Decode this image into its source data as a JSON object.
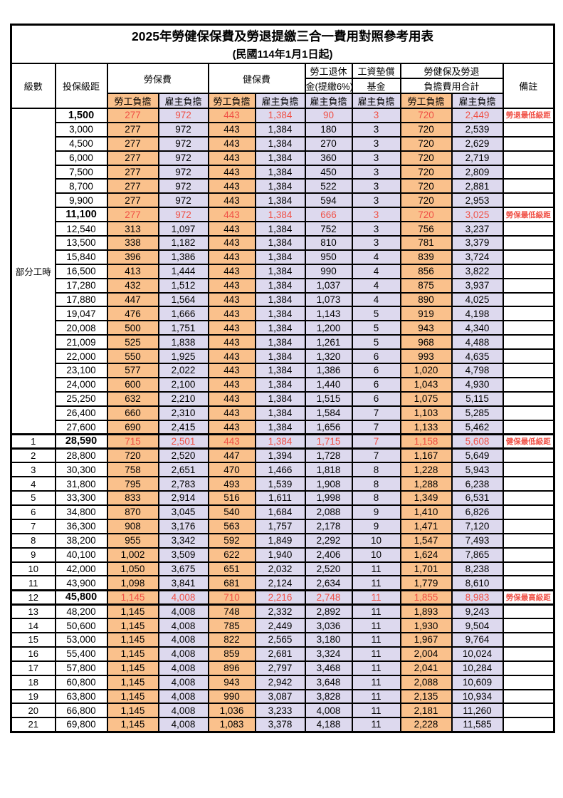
{
  "document": {
    "title": "2025年勞健保保費及勞退提繳三合一費用對照參考用表",
    "subtitle": "(民國114年1月1日起)"
  },
  "colors": {
    "employee_col_bg": "#FAC18C",
    "employer_col_bg": "#DDD9EE",
    "highlight_red": "#F05045",
    "border": "#000000",
    "page_bg": "#FFFFFF"
  },
  "header": {
    "col_level": "級數",
    "col_salary": "投保級距",
    "grp_labor": "勞保費",
    "grp_health": "健保費",
    "grp_pension_line1": "勞工退休",
    "grp_pension_line2": "金(提繳6%)",
    "grp_wage_line1": "工資墊償",
    "grp_wage_line2": "基金",
    "grp_total_line1": "勞健保及勞退",
    "grp_total_line2": "負擔費用合計",
    "sub_employee": "勞工負擔",
    "sub_employer": "雇主負擔",
    "col_remark": "備註"
  },
  "part_time_label": "部分工時",
  "rows": [
    {
      "pt": true,
      "level": "",
      "salary": "1,500",
      "v": [
        "277",
        "972",
        "443",
        "1,384",
        "90",
        "3",
        "720",
        "2,449"
      ],
      "remark": "勞退最低級距",
      "hl": true,
      "thick": false
    },
    {
      "pt": true,
      "level": "",
      "salary": "3,000",
      "v": [
        "277",
        "972",
        "443",
        "1,384",
        "180",
        "3",
        "720",
        "2,539"
      ],
      "remark": "",
      "hl": false,
      "thick": false
    },
    {
      "pt": true,
      "level": "",
      "salary": "4,500",
      "v": [
        "277",
        "972",
        "443",
        "1,384",
        "270",
        "3",
        "720",
        "2,629"
      ],
      "remark": "",
      "hl": false,
      "thick": false
    },
    {
      "pt": true,
      "level": "",
      "salary": "6,000",
      "v": [
        "277",
        "972",
        "443",
        "1,384",
        "360",
        "3",
        "720",
        "2,719"
      ],
      "remark": "",
      "hl": false,
      "thick": false
    },
    {
      "pt": true,
      "level": "",
      "salary": "7,500",
      "v": [
        "277",
        "972",
        "443",
        "1,384",
        "450",
        "3",
        "720",
        "2,809"
      ],
      "remark": "",
      "hl": false,
      "thick": false
    },
    {
      "pt": true,
      "level": "",
      "salary": "8,700",
      "v": [
        "277",
        "972",
        "443",
        "1,384",
        "522",
        "3",
        "720",
        "2,881"
      ],
      "remark": "",
      "hl": false,
      "thick": false
    },
    {
      "pt": true,
      "level": "",
      "salary": "9,900",
      "v": [
        "277",
        "972",
        "443",
        "1,384",
        "594",
        "3",
        "720",
        "2,953"
      ],
      "remark": "",
      "hl": false,
      "thick": false
    },
    {
      "pt": true,
      "level": "",
      "salary": "11,100",
      "v": [
        "277",
        "972",
        "443",
        "1,384",
        "666",
        "3",
        "720",
        "3,025"
      ],
      "remark": "勞保最低級距",
      "hl": true,
      "thick": false
    },
    {
      "pt": true,
      "level": "",
      "salary": "12,540",
      "v": [
        "313",
        "1,097",
        "443",
        "1,384",
        "752",
        "3",
        "756",
        "3,237"
      ],
      "remark": "",
      "hl": false,
      "thick": false
    },
    {
      "pt": true,
      "level": "",
      "salary": "13,500",
      "v": [
        "338",
        "1,182",
        "443",
        "1,384",
        "810",
        "3",
        "781",
        "3,379"
      ],
      "remark": "",
      "hl": false,
      "thick": false
    },
    {
      "pt": true,
      "level": "",
      "salary": "15,840",
      "v": [
        "396",
        "1,386",
        "443",
        "1,384",
        "950",
        "4",
        "839",
        "3,724"
      ],
      "remark": "",
      "hl": false,
      "thick": false
    },
    {
      "pt": true,
      "level": "",
      "salary": "16,500",
      "v": [
        "413",
        "1,444",
        "443",
        "1,384",
        "990",
        "4",
        "856",
        "3,822"
      ],
      "remark": "",
      "hl": false,
      "thick": false
    },
    {
      "pt": true,
      "level": "",
      "salary": "17,280",
      "v": [
        "432",
        "1,512",
        "443",
        "1,384",
        "1,037",
        "4",
        "875",
        "3,937"
      ],
      "remark": "",
      "hl": false,
      "thick": false
    },
    {
      "pt": true,
      "level": "",
      "salary": "17,880",
      "v": [
        "447",
        "1,564",
        "443",
        "1,384",
        "1,073",
        "4",
        "890",
        "4,025"
      ],
      "remark": "",
      "hl": false,
      "thick": false
    },
    {
      "pt": true,
      "level": "",
      "salary": "19,047",
      "v": [
        "476",
        "1,666",
        "443",
        "1,384",
        "1,143",
        "5",
        "919",
        "4,198"
      ],
      "remark": "",
      "hl": false,
      "thick": false
    },
    {
      "pt": true,
      "level": "",
      "salary": "20,008",
      "v": [
        "500",
        "1,751",
        "443",
        "1,384",
        "1,200",
        "5",
        "943",
        "4,340"
      ],
      "remark": "",
      "hl": false,
      "thick": false
    },
    {
      "pt": true,
      "level": "",
      "salary": "21,009",
      "v": [
        "525",
        "1,838",
        "443",
        "1,384",
        "1,261",
        "5",
        "968",
        "4,488"
      ],
      "remark": "",
      "hl": false,
      "thick": false
    },
    {
      "pt": true,
      "level": "",
      "salary": "22,000",
      "v": [
        "550",
        "1,925",
        "443",
        "1,384",
        "1,320",
        "6",
        "993",
        "4,635"
      ],
      "remark": "",
      "hl": false,
      "thick": false
    },
    {
      "pt": true,
      "level": "",
      "salary": "23,100",
      "v": [
        "577",
        "2,022",
        "443",
        "1,384",
        "1,386",
        "6",
        "1,020",
        "4,798"
      ],
      "remark": "",
      "hl": false,
      "thick": false
    },
    {
      "pt": true,
      "level": "",
      "salary": "24,000",
      "v": [
        "600",
        "2,100",
        "443",
        "1,384",
        "1,440",
        "6",
        "1,043",
        "4,930"
      ],
      "remark": "",
      "hl": false,
      "thick": false
    },
    {
      "pt": true,
      "level": "",
      "salary": "25,250",
      "v": [
        "632",
        "2,210",
        "443",
        "1,384",
        "1,515",
        "6",
        "1,075",
        "5,115"
      ],
      "remark": "",
      "hl": false,
      "thick": false
    },
    {
      "pt": true,
      "level": "",
      "salary": "26,400",
      "v": [
        "660",
        "2,310",
        "443",
        "1,384",
        "1,584",
        "7",
        "1,103",
        "5,285"
      ],
      "remark": "",
      "hl": false,
      "thick": false
    },
    {
      "pt": true,
      "level": "",
      "salary": "27,600",
      "v": [
        "690",
        "2,415",
        "443",
        "1,384",
        "1,656",
        "7",
        "1,133",
        "5,462"
      ],
      "remark": "",
      "hl": false,
      "thick": false
    },
    {
      "pt": false,
      "level": "1",
      "salary": "28,590",
      "v": [
        "715",
        "2,501",
        "443",
        "1,384",
        "1,715",
        "7",
        "1,158",
        "5,608"
      ],
      "remark": "健保最低級距",
      "hl": true,
      "thick": true
    },
    {
      "pt": false,
      "level": "2",
      "salary": "28,800",
      "v": [
        "720",
        "2,520",
        "447",
        "1,394",
        "1,728",
        "7",
        "1,167",
        "5,649"
      ],
      "remark": "",
      "hl": false,
      "thick": false
    },
    {
      "pt": false,
      "level": "3",
      "salary": "30,300",
      "v": [
        "758",
        "2,651",
        "470",
        "1,466",
        "1,818",
        "8",
        "1,228",
        "5,943"
      ],
      "remark": "",
      "hl": false,
      "thick": false
    },
    {
      "pt": false,
      "level": "4",
      "salary": "31,800",
      "v": [
        "795",
        "2,783",
        "493",
        "1,539",
        "1,908",
        "8",
        "1,288",
        "6,238"
      ],
      "remark": "",
      "hl": false,
      "thick": false
    },
    {
      "pt": false,
      "level": "5",
      "salary": "33,300",
      "v": [
        "833",
        "2,914",
        "516",
        "1,611",
        "1,998",
        "8",
        "1,349",
        "6,531"
      ],
      "remark": "",
      "hl": false,
      "thick": false
    },
    {
      "pt": false,
      "level": "6",
      "salary": "34,800",
      "v": [
        "870",
        "3,045",
        "540",
        "1,684",
        "2,088",
        "9",
        "1,410",
        "6,826"
      ],
      "remark": "",
      "hl": false,
      "thick": false
    },
    {
      "pt": false,
      "level": "7",
      "salary": "36,300",
      "v": [
        "908",
        "3,176",
        "563",
        "1,757",
        "2,178",
        "9",
        "1,471",
        "7,120"
      ],
      "remark": "",
      "hl": false,
      "thick": false
    },
    {
      "pt": false,
      "level": "8",
      "salary": "38,200",
      "v": [
        "955",
        "3,342",
        "592",
        "1,849",
        "2,292",
        "10",
        "1,547",
        "7,493"
      ],
      "remark": "",
      "hl": false,
      "thick": false
    },
    {
      "pt": false,
      "level": "9",
      "salary": "40,100",
      "v": [
        "1,002",
        "3,509",
        "622",
        "1,940",
        "2,406",
        "10",
        "1,624",
        "7,865"
      ],
      "remark": "",
      "hl": false,
      "thick": false
    },
    {
      "pt": false,
      "level": "10",
      "salary": "42,000",
      "v": [
        "1,050",
        "3,675",
        "651",
        "2,032",
        "2,520",
        "11",
        "1,701",
        "8,238"
      ],
      "remark": "",
      "hl": false,
      "thick": false
    },
    {
      "pt": false,
      "level": "11",
      "salary": "43,900",
      "v": [
        "1,098",
        "3,841",
        "681",
        "2,124",
        "2,634",
        "11",
        "1,779",
        "8,610"
      ],
      "remark": "",
      "hl": false,
      "thick": false
    },
    {
      "pt": false,
      "level": "12",
      "salary": "45,800",
      "v": [
        "1,145",
        "4,008",
        "710",
        "2,216",
        "2,748",
        "11",
        "1,855",
        "8,983"
      ],
      "remark": "勞保最高級距",
      "hl": true,
      "thick": true
    },
    {
      "pt": false,
      "level": "13",
      "salary": "48,200",
      "v": [
        "1,145",
        "4,008",
        "748",
        "2,332",
        "2,892",
        "11",
        "1,893",
        "9,243"
      ],
      "remark": "",
      "hl": false,
      "thick": false
    },
    {
      "pt": false,
      "level": "14",
      "salary": "50,600",
      "v": [
        "1,145",
        "4,008",
        "785",
        "2,449",
        "3,036",
        "11",
        "1,930",
        "9,504"
      ],
      "remark": "",
      "hl": false,
      "thick": false
    },
    {
      "pt": false,
      "level": "15",
      "salary": "53,000",
      "v": [
        "1,145",
        "4,008",
        "822",
        "2,565",
        "3,180",
        "11",
        "1,967",
        "9,764"
      ],
      "remark": "",
      "hl": false,
      "thick": false
    },
    {
      "pt": false,
      "level": "16",
      "salary": "55,400",
      "v": [
        "1,145",
        "4,008",
        "859",
        "2,681",
        "3,324",
        "11",
        "2,004",
        "10,024"
      ],
      "remark": "",
      "hl": false,
      "thick": false
    },
    {
      "pt": false,
      "level": "17",
      "salary": "57,800",
      "v": [
        "1,145",
        "4,008",
        "896",
        "2,797",
        "3,468",
        "11",
        "2,041",
        "10,284"
      ],
      "remark": "",
      "hl": false,
      "thick": false
    },
    {
      "pt": false,
      "level": "18",
      "salary": "60,800",
      "v": [
        "1,145",
        "4,008",
        "943",
        "2,942",
        "3,648",
        "11",
        "2,088",
        "10,609"
      ],
      "remark": "",
      "hl": false,
      "thick": false
    },
    {
      "pt": false,
      "level": "19",
      "salary": "63,800",
      "v": [
        "1,145",
        "4,008",
        "990",
        "3,087",
        "3,828",
        "11",
        "2,135",
        "10,934"
      ],
      "remark": "",
      "hl": false,
      "thick": false
    },
    {
      "pt": false,
      "level": "20",
      "salary": "66,800",
      "v": [
        "1,145",
        "4,008",
        "1,036",
        "3,233",
        "4,008",
        "11",
        "2,181",
        "11,260"
      ],
      "remark": "",
      "hl": false,
      "thick": false
    },
    {
      "pt": false,
      "level": "21",
      "salary": "69,800",
      "v": [
        "1,145",
        "4,008",
        "1,083",
        "3,378",
        "4,188",
        "11",
        "2,228",
        "11,585"
      ],
      "remark": "",
      "hl": false,
      "thick": false
    }
  ]
}
